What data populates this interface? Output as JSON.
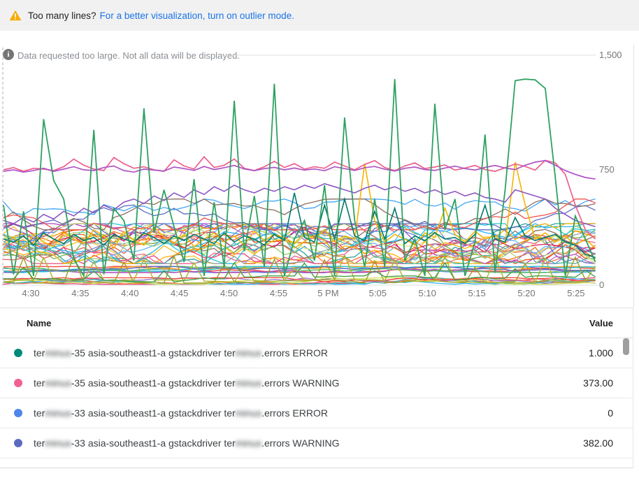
{
  "banner": {
    "warning_label": "Too many lines?",
    "link_label": "For a better visualization, turn on outlier mode.",
    "warning_color": "#f9ab00",
    "link_color": "#1a73e8"
  },
  "chart": {
    "notice": "Data requested too large. Not all data will be displayed.",
    "y_labels": [
      "1,500",
      "750",
      "0"
    ],
    "x_ticks": [
      "4:30",
      "4:35",
      "4:40",
      "4:45",
      "4:50",
      "4:55",
      "5 PM",
      "5:05",
      "5:10",
      "5:15",
      "5:20",
      "5:25"
    ]
  },
  "chart_data": {
    "type": "line",
    "ylim": [
      0,
      1500
    ],
    "y_gridlines": [
      0,
      750,
      1500
    ],
    "x_tick_labels": [
      "4:30",
      "4:35",
      "4:40",
      "4:45",
      "4:50",
      "4:55",
      "5 PM",
      "5:05",
      "5:10",
      "5:15",
      "5:20",
      "5:25"
    ],
    "legend_position": "table-below",
    "main_series": [
      {
        "color": "#f4b400",
        "width": 1.6,
        "values": [
          260,
          310,
          240,
          330,
          280,
          250,
          340,
          300,
          270,
          360,
          320,
          240,
          350,
          290,
          260,
          380,
          310,
          270,
          330,
          250,
          300,
          340,
          280,
          320,
          260,
          350,
          290,
          330,
          310,
          270,
          340,
          300,
          360,
          280,
          320,
          300,
          790,
          420,
          280,
          330,
          300,
          260,
          340,
          310,
          500,
          330,
          280,
          350,
          300,
          320,
          270,
          800,
          520,
          300,
          340,
          280,
          320,
          260,
          300,
          240
        ]
      },
      {
        "color": "#00796b",
        "width": 1.6,
        "values": [
          300,
          280,
          320,
          260,
          340,
          300,
          270,
          330,
          290,
          310,
          260,
          330,
          300,
          280,
          340,
          310,
          270,
          320,
          290,
          330,
          300,
          270,
          340,
          280,
          320,
          300,
          260,
          330,
          290,
          600,
          310,
          280,
          520,
          300,
          560,
          320,
          290,
          480,
          300,
          500,
          270,
          320,
          290,
          340,
          300,
          310,
          270,
          330,
          520,
          300,
          280,
          440,
          320,
          290,
          310,
          330,
          280,
          260,
          200,
          180
        ]
      },
      {
        "color": "#8e57c4",
        "width": 1.6,
        "values": [
          420,
          400,
          440,
          410,
          460,
          430,
          480,
          450,
          500,
          470,
          520,
          490,
          540,
          560,
          530,
          580,
          550,
          600,
          570,
          620,
          590,
          640,
          610,
          650,
          620,
          600,
          630,
          610,
          640,
          620,
          650,
          630,
          660,
          640,
          620,
          600,
          630,
          650,
          620,
          640,
          610,
          630,
          600,
          620,
          590,
          610,
          580,
          600,
          570,
          560,
          540,
          620,
          600,
          580,
          560,
          500,
          460,
          420,
          400,
          380
        ]
      },
      {
        "color": "#ee5f8d",
        "width": 1.7,
        "values": [
          750,
          765,
          740,
          760,
          755,
          745,
          770,
          820,
          780,
          755,
          745,
          830,
          790,
          760,
          770,
          750,
          740,
          815,
          775,
          755,
          835,
          765,
          780,
          820,
          760,
          745,
          770,
          805,
          765,
          790,
          755,
          770,
          760,
          800,
          775,
          750,
          785,
          810,
          765,
          745,
          775,
          795,
          758,
          768,
          782,
          748,
          762,
          778,
          752,
          740,
          764,
          788,
          772,
          748,
          812,
          795,
          720,
          520,
          360,
          300
        ]
      },
      {
        "color": "#b052c5",
        "width": 1.7,
        "values": [
          740,
          750,
          735,
          745,
          760,
          740,
          755,
          770,
          750,
          745,
          765,
          775,
          745,
          735,
          755,
          748,
          742,
          768,
          758,
          746,
          772,
          752,
          764,
          778,
          756,
          744,
          758,
          766,
          750,
          762,
          748,
          756,
          744,
          770,
          758,
          746,
          764,
          772,
          754,
          742,
          760,
          768,
          752,
          746,
          762,
          774,
          758,
          748,
          766,
          778,
          762,
          752,
          780,
          800,
          810,
          780,
          745,
          720,
          700,
          690
        ]
      },
      {
        "color": "#2da160",
        "width": 1.8,
        "values": [
          520,
          70,
          480,
          60,
          1080,
          680,
          560,
          170,
          60,
          1010,
          70,
          500,
          420,
          160,
          1150,
          340,
          620,
          380,
          150,
          690,
          60,
          540,
          120,
          1200,
          220,
          580,
          120,
          1310,
          60,
          300,
          420,
          160,
          650,
          60,
          1090,
          420,
          120,
          560,
          120,
          1340,
          160,
          300,
          60,
          1180,
          360,
          560,
          60,
          280,
          980,
          80,
          620,
          1330,
          1340,
          1335,
          1280,
          700,
          60,
          450,
          300,
          150
        ]
      }
    ],
    "background_bands": [
      {
        "name": "cluster",
        "count": 26,
        "min": 140,
        "max": 400,
        "start_min": 180,
        "start_max": 360,
        "jitter": 55,
        "width": 1.3,
        "colors": [
          "#e8710a",
          "#ef5350",
          "#f6bf26",
          "#5086ec",
          "#26a69a",
          "#ab47bc",
          "#8d6e63",
          "#ec407a",
          "#7cb342",
          "#ff7043",
          "#5c6bc0",
          "#29b6f6",
          "#9ccc65",
          "#d81b60",
          "#fb8c00",
          "#26c6da",
          "#e65100",
          "#7986cb",
          "#ba68c8",
          "#4db6ac",
          "#dce775",
          "#f06292",
          "#64b5f6",
          "#aed581",
          "#ffb300",
          "#90a4ae"
        ]
      },
      {
        "name": "mid-wander",
        "count": 4,
        "min": 360,
        "max": 560,
        "start_min": 400,
        "start_max": 520,
        "jitter": 45,
        "width": 1.3,
        "colors": [
          "#5c6bc0",
          "#42a5f5",
          "#8d6e63",
          "#ef5350"
        ]
      },
      {
        "name": "low-flat",
        "count": 7,
        "min": 82,
        "max": 122,
        "start_min": 90,
        "start_max": 115,
        "jitter": 9,
        "width": 1.5,
        "colors": [
          "#42a5f5",
          "#ef5350",
          "#ffa726",
          "#ab47bc",
          "#26c6da",
          "#66bb6a",
          "#5c6bc0"
        ]
      },
      {
        "name": "bottom",
        "count": 7,
        "min": 6,
        "max": 48,
        "start_min": 10,
        "start_max": 40,
        "jitter": 10,
        "width": 1.3,
        "colors": [
          "#ec407a",
          "#29b6f6",
          "#ff7043",
          "#9575cd",
          "#4db6ac",
          "#d4e157",
          "#f44336"
        ]
      },
      {
        "name": "olive-spikes",
        "count": 2,
        "min": 14,
        "max": 34,
        "start_min": 18,
        "start_max": 30,
        "jitter": 7,
        "width": 1.4,
        "spike_every": 5,
        "spike_min": 110,
        "spike_max": 200,
        "colors": [
          "#9e9d24",
          "#afb42b"
        ]
      },
      {
        "name": "green-bottom-spikes",
        "count": 1,
        "min": 20,
        "max": 60,
        "start_min": 30,
        "start_max": 50,
        "jitter": 12,
        "width": 1.4,
        "spike_every": 7,
        "spike_min": 90,
        "spike_max": 150,
        "colors": [
          "#43a047"
        ]
      }
    ]
  },
  "table": {
    "name_header": "Name",
    "value_header": "Value",
    "rows": [
      {
        "dot_color": "#00897b",
        "name_segments": [
          {
            "text": "ter"
          },
          {
            "text": "minus",
            "blurred": true
          },
          {
            "text": "-35 asia-southeast1-a gstackdriver ter"
          },
          {
            "text": "minus",
            "blurred": true
          },
          {
            "text": ".errors ERROR"
          }
        ],
        "value": "1.000"
      },
      {
        "dot_color": "#f06292",
        "name_segments": [
          {
            "text": "ter"
          },
          {
            "text": "minus",
            "blurred": true
          },
          {
            "text": "-35 asia-southeast1-a gstackdriver ter"
          },
          {
            "text": "minus",
            "blurred": true
          },
          {
            "text": ".errors WARNING"
          }
        ],
        "value": "373.00"
      },
      {
        "dot_color": "#4e86ec",
        "name_segments": [
          {
            "text": "ter"
          },
          {
            "text": "minus",
            "blurred": true
          },
          {
            "text": "-33 asia-southeast1-a gstackdriver ter"
          },
          {
            "text": "minus",
            "blurred": true
          },
          {
            "text": ".errors ERROR"
          }
        ],
        "value": "0"
      },
      {
        "dot_color": "#5c6bc0",
        "name_segments": [
          {
            "text": "ter"
          },
          {
            "text": "minus",
            "blurred": true
          },
          {
            "text": "-33 asia-southeast1-a gstackdriver ter"
          },
          {
            "text": "minus",
            "blurred": true
          },
          {
            "text": ".errors WARNING"
          }
        ],
        "value": "382.00"
      }
    ]
  }
}
